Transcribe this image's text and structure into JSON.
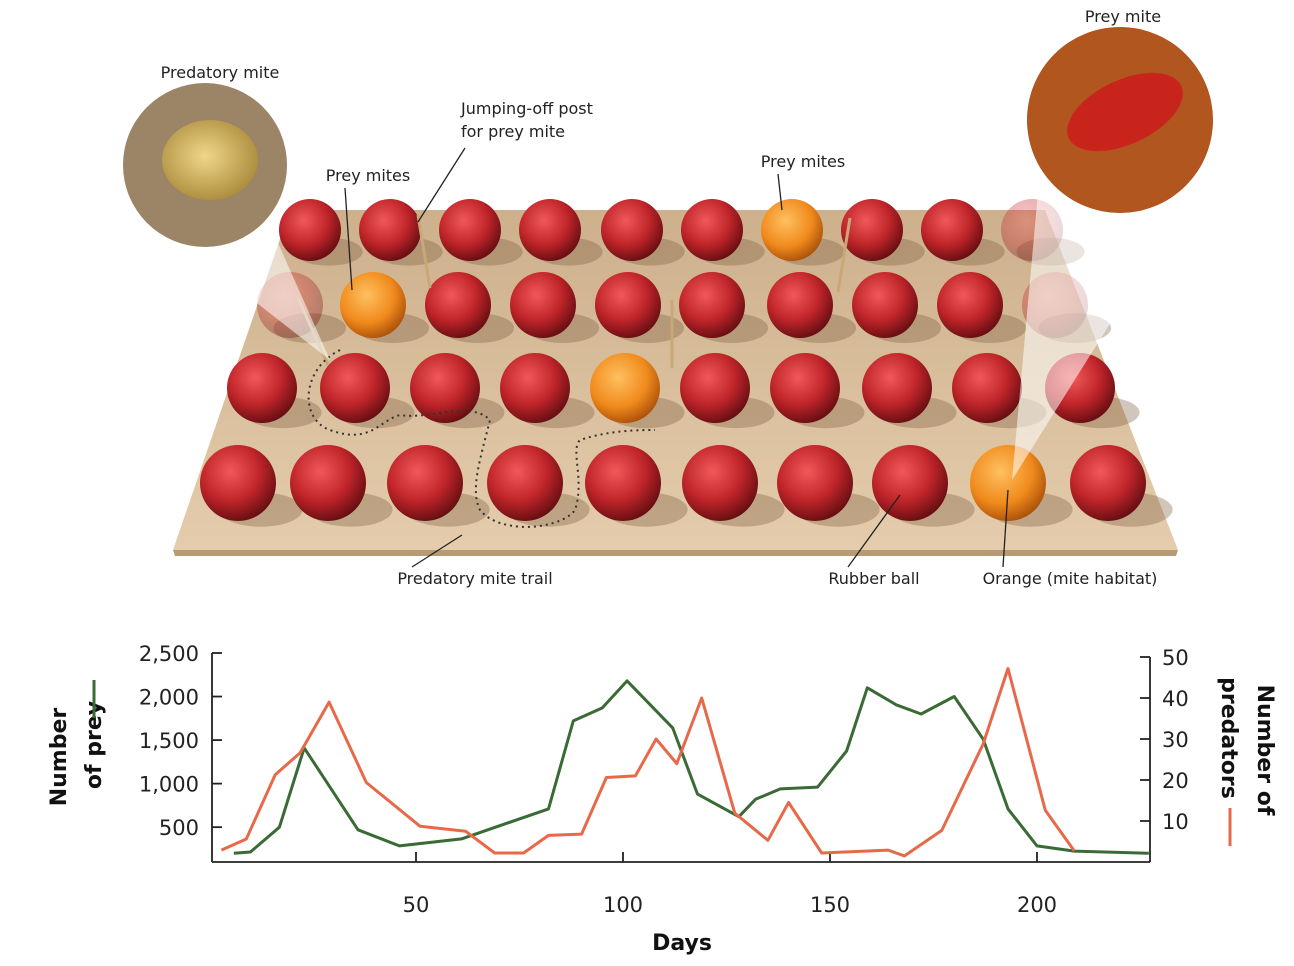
{
  "illustration": {
    "labels": {
      "predatory_mite": "Predatory mite",
      "prey_mites_left": "Prey mites",
      "jumping_post_line1": "Jumping-off post",
      "jumping_post_line2": "for prey mite",
      "prey_mites_right": "Prey mites",
      "prey_mite": "Prey mite",
      "predatory_trail": "Predatory mite trail",
      "rubber_ball": "Rubber ball",
      "orange": "Orange (mite habitat)"
    },
    "colors": {
      "ball": "#c0252a",
      "orange": "#f08a1c",
      "board": "#dcc2a0"
    }
  },
  "chart_data": {
    "type": "line",
    "xlabel": "Days",
    "ylabel_left_line1": "Number",
    "ylabel_left_line2": "of prey",
    "ylabel_right_line1": "Number of",
    "ylabel_right_line2": "predators",
    "x_ticks": [
      "50",
      "100",
      "150",
      "200"
    ],
    "x_tick_values": [
      50,
      100,
      150,
      200
    ],
    "y_left_ticks": [
      "500",
      "1,000",
      "1,500",
      "2,000",
      "2,500"
    ],
    "y_left_tick_values": [
      500,
      1000,
      1500,
      2000,
      2500
    ],
    "y_right_ticks": [
      "10",
      "20",
      "30",
      "40",
      "50"
    ],
    "y_right_tick_values": [
      10,
      20,
      30,
      40,
      50
    ],
    "xlim": [
      0,
      227
    ],
    "ylim_left": [
      100,
      2500
    ],
    "ylim_right": [
      0,
      50
    ],
    "grid": false,
    "series": [
      {
        "axis": "left",
        "color": "#3a6a35",
        "x": [
          6,
          10,
          17,
          23,
          36,
          46,
          61,
          82,
          88,
          95,
          101,
          112,
          118,
          128,
          132,
          138,
          147,
          154,
          159,
          166,
          172,
          180,
          187,
          193,
          200,
          209,
          227
        ],
        "y": [
          200,
          215,
          500,
          1410,
          470,
          285,
          365,
          710,
          1720,
          1870,
          2180,
          1640,
          880,
          620,
          820,
          940,
          960,
          1375,
          2100,
          1905,
          1800,
          2000,
          1510,
          710,
          285,
          225,
          200
        ]
      },
      {
        "axis": "right",
        "color": "#e8694a",
        "x": [
          3,
          9,
          16,
          22,
          29,
          38,
          51,
          62,
          69,
          76,
          82,
          90,
          96,
          103,
          108,
          113,
          119,
          127,
          135,
          140,
          148,
          164,
          168,
          177,
          187,
          193,
          202,
          209
        ],
        "y": [
          2.9,
          5.6,
          21.3,
          26.6,
          39,
          19.4,
          8.7,
          7.5,
          2.2,
          2.2,
          6.5,
          6.8,
          20.6,
          21,
          30,
          24,
          40,
          11.9,
          5.3,
          14.5,
          2.2,
          2.9,
          1.5,
          7.7,
          28.8,
          47.2,
          12.6,
          2.7
        ]
      }
    ]
  }
}
